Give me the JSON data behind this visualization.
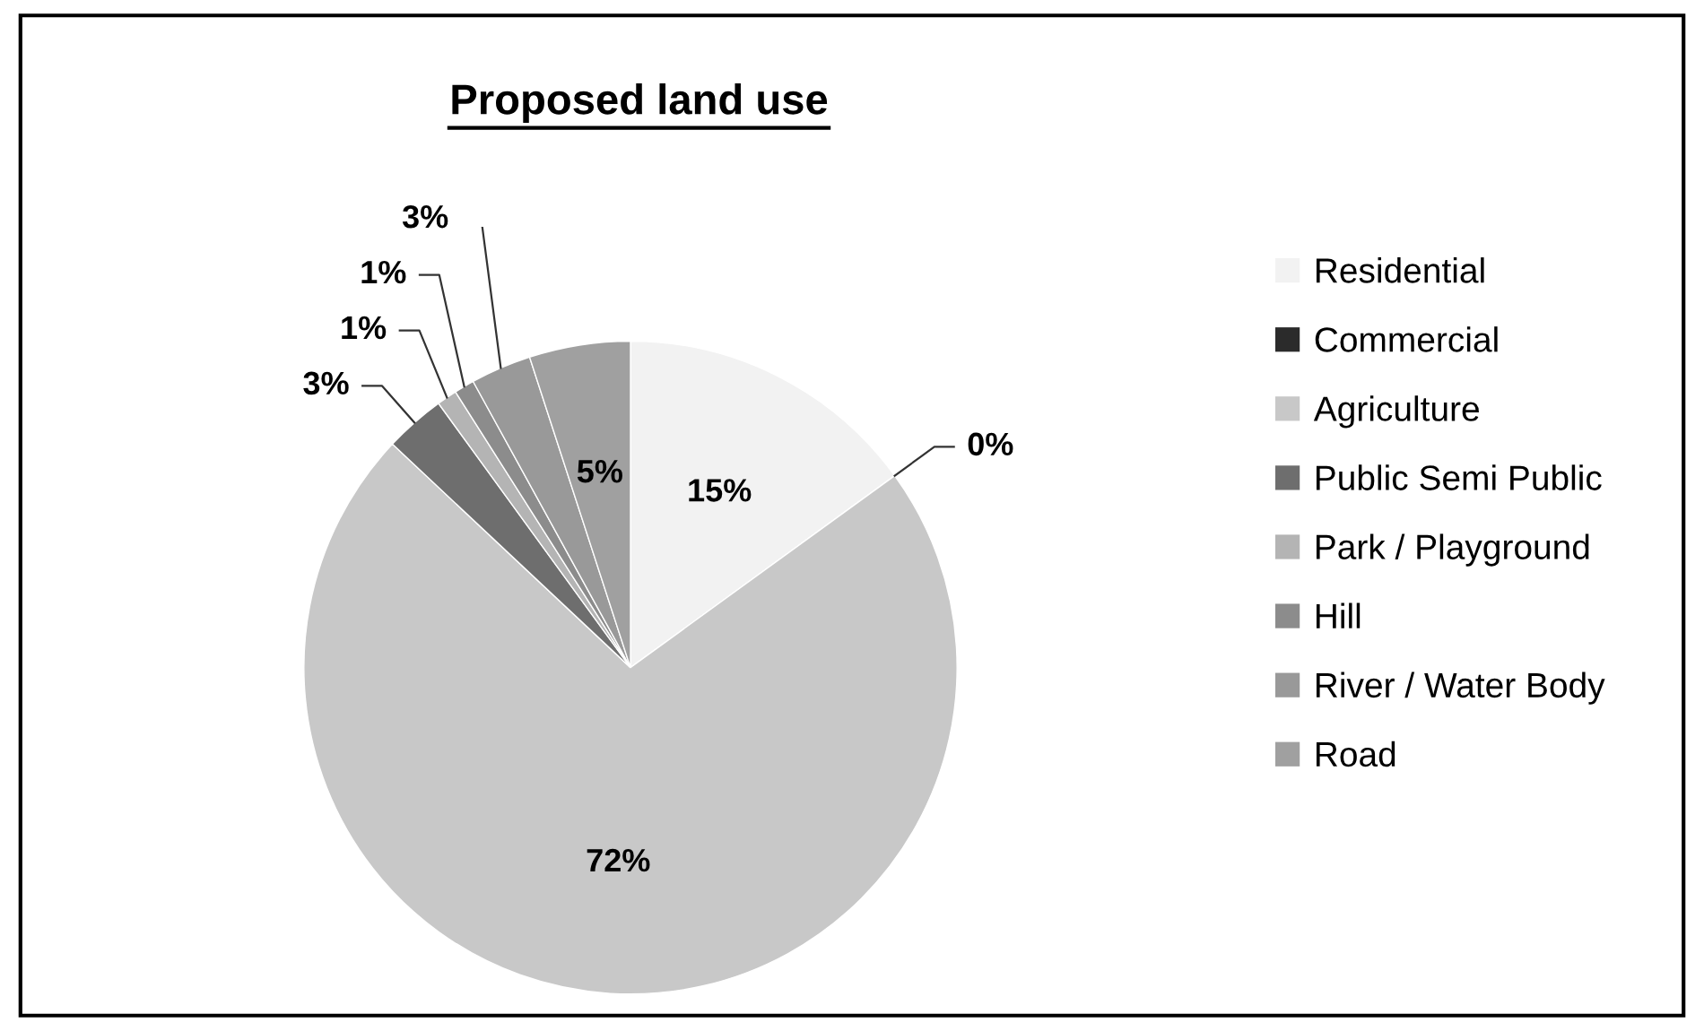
{
  "chart_data": {
    "type": "pie",
    "title": "Proposed land use",
    "categories": [
      "Residential",
      "Commercial",
      "Agriculture",
      "Public Semi Public",
      "Park / Playground",
      "Hill",
      "River / Water Body",
      "Road"
    ],
    "values": [
      15,
      0,
      72,
      3,
      1,
      1,
      3,
      5
    ],
    "colors": [
      "#f2f2f2",
      "#2b2b2b",
      "#c8c8c8",
      "#6e6e6e",
      "#b4b4b4",
      "#8c8c8c",
      "#999999",
      "#a0a0a0"
    ],
    "value_labels": [
      "15%",
      "0%",
      "72%",
      "3%",
      "1%",
      "1%",
      "3%",
      "5%"
    ],
    "legend": "right"
  }
}
